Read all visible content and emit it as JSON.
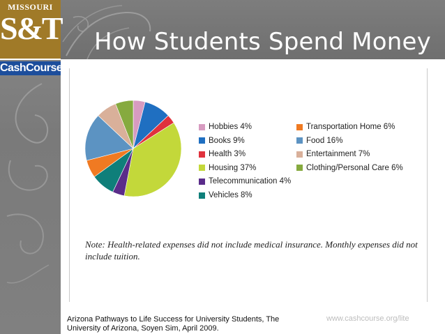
{
  "header": {
    "title": "How Students Spend Money"
  },
  "logo": {
    "university": "MISSOURI",
    "mark": "S&T",
    "program": "CashCourse"
  },
  "note": "Note: Health-related expenses did not include medical insurance. Monthly expenses did not include tuition.",
  "footer": {
    "source": "Arizona Pathways to Life Success for University Students, The University of Arizona, Soyen Sim, April 2009.",
    "url": "www.cashcourse.org/lite"
  },
  "colors": {
    "accent_gold": "#a07a28",
    "cashcourse_blue": "#1d4e9c"
  },
  "chart_data": {
    "type": "pie",
    "title": "",
    "legend_placement": "right",
    "slices": [
      {
        "label": "Hobbies 4%",
        "value": 4,
        "color": "#d79bc0"
      },
      {
        "label": "Books 9%",
        "value": 9,
        "color": "#1f6fc1"
      },
      {
        "label": "Health 3%",
        "value": 3,
        "color": "#e0323d"
      },
      {
        "label": "Housing 37%",
        "value": 37,
        "color": "#c3d83a"
      },
      {
        "label": "Telecommunication 4%",
        "value": 4,
        "color": "#5a2c8a"
      },
      {
        "label": "Vehicles 8%",
        "value": 8,
        "color": "#0f7f7a"
      },
      {
        "label": "Transportation Home 6%",
        "value": 6,
        "color": "#f07a22"
      },
      {
        "label": "Food 16%",
        "value": 16,
        "color": "#5c93c2"
      },
      {
        "label": "Entertainment 7%",
        "value": 7,
        "color": "#d9b09a"
      },
      {
        "label": "Clothing/Personal Care 6%",
        "value": 6,
        "color": "#86aa3f"
      }
    ]
  }
}
